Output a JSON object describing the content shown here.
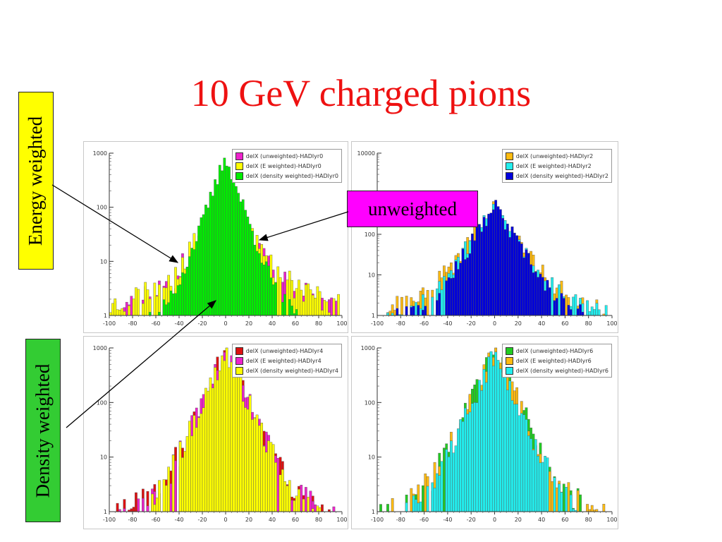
{
  "page": {
    "title": "10 GeV charged pions",
    "labels": {
      "energy": "Energy weighted",
      "density": "Density weighted",
      "unweighted": "unweighted"
    },
    "colors": {
      "title": "#ee1111",
      "energy_box": "#ffff00",
      "density_box": "#33cc33",
      "unweighted_box": "#ff00ff"
    }
  },
  "chart_data": [
    {
      "type": "area",
      "panel": "top-left",
      "xlim": [
        -100,
        100
      ],
      "ylim": [
        1,
        1000
      ],
      "y_scale": "log",
      "x_ticks": [
        "-100",
        "-80",
        "-60",
        "-40",
        "-20",
        "0",
        "20",
        "40",
        "60",
        "80",
        "100"
      ],
      "y_ticks": [
        "1",
        "10",
        "100",
        "1000"
      ],
      "legend": "top-right",
      "series": [
        {
          "name": "delX (unweighted)-HADlyr0",
          "color": "#ee22cc",
          "center": 220,
          "width": 9,
          "tail_level": 8,
          "noise": 0.6,
          "seed": 11
        },
        {
          "name": "delX (E weighted)-HADlyr0",
          "color": "#ffff00",
          "center": 200,
          "width": 10,
          "tail_level": 9,
          "noise": 0.55,
          "seed": 23
        },
        {
          "name": "delX (density weighted)-HADlyr0",
          "color": "#00ee00",
          "center": 900,
          "width": 7,
          "tail_level": 3,
          "noise": 0.35,
          "seed": 37
        }
      ]
    },
    {
      "type": "area",
      "panel": "top-right",
      "xlim": [
        -100,
        100
      ],
      "ylim": [
        1,
        10000
      ],
      "y_scale": "log",
      "x_ticks": [
        "-100",
        "-80",
        "-60",
        "-40",
        "-20",
        "0",
        "20",
        "40",
        "60",
        "80",
        "100"
      ],
      "y_ticks": [
        "1",
        "10",
        "100",
        "1000",
        "10000"
      ],
      "legend": "top-right",
      "series": [
        {
          "name": "delX (unweighted)-HADlyr2",
          "color": "#ffbb11",
          "center": 450,
          "width": 10,
          "tail_level": 7,
          "noise": 0.6,
          "seed": 41
        },
        {
          "name": "delX (E weighted)-HADlyr2",
          "color": "#22eeee",
          "center": 420,
          "width": 10,
          "tail_level": 6,
          "noise": 0.6,
          "seed": 53
        },
        {
          "name": "delX (density weighted)-HADlyr2",
          "color": "#0000dd",
          "center": 500,
          "width": 9,
          "tail_level": 4,
          "noise": 0.5,
          "seed": 67
        }
      ]
    },
    {
      "type": "area",
      "panel": "bottom-left",
      "xlim": [
        -100,
        100
      ],
      "ylim": [
        1,
        1000
      ],
      "y_scale": "log",
      "x_ticks": [
        "-100",
        "-80",
        "-60",
        "-40",
        "-20",
        "0",
        "20",
        "40",
        "60",
        "80",
        "100"
      ],
      "y_ticks": [
        "1",
        "10",
        "100",
        "1000"
      ],
      "legend": "top-right",
      "series": [
        {
          "name": "delX (unweighted)-HADlyr4",
          "color": "#dd1111",
          "center": 750,
          "width": 9,
          "tail_level": 4,
          "noise": 0.7,
          "seed": 71
        },
        {
          "name": "delX (E weighted)-HADlyr4",
          "color": "#ee22cc",
          "center": 760,
          "width": 9,
          "tail_level": 4,
          "noise": 0.7,
          "seed": 83
        },
        {
          "name": "delX (density weighted)-HADlyr4",
          "color": "#ffff00",
          "center": 850,
          "width": 9,
          "tail_level": 3,
          "noise": 0.5,
          "seed": 97
        }
      ]
    },
    {
      "type": "area",
      "panel": "bottom-right",
      "xlim": [
        -100,
        100
      ],
      "ylim": [
        1,
        1000
      ],
      "y_scale": "log",
      "x_ticks": [
        "-100",
        "-80",
        "-60",
        "-40",
        "-20",
        "0",
        "20",
        "40",
        "60",
        "80",
        "100"
      ],
      "y_ticks": [
        "1",
        "10",
        "100",
        "1000"
      ],
      "legend": "top-right",
      "series": [
        {
          "name": "delX (unweighted)-HADlyr6",
          "color": "#22cc22",
          "center": 780,
          "width": 9,
          "tail_level": 4,
          "noise": 0.7,
          "seed": 101
        },
        {
          "name": "delX (E weighted)-HADlyr6",
          "color": "#ffbb11",
          "center": 770,
          "width": 9,
          "tail_level": 4,
          "noise": 0.7,
          "seed": 113
        },
        {
          "name": "delX (density weighted)-HADlyr6",
          "color": "#22eeee",
          "center": 800,
          "width": 9,
          "tail_level": 3,
          "noise": 0.5,
          "seed": 127
        }
      ]
    }
  ]
}
